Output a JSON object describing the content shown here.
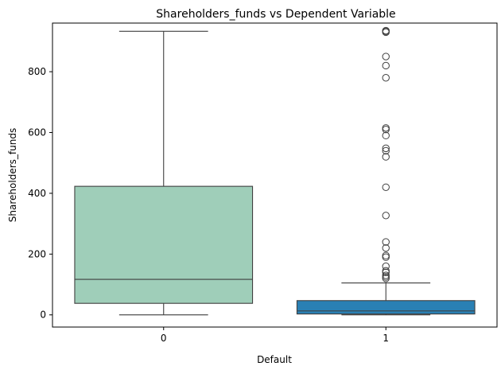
{
  "chart_data": {
    "type": "box",
    "title": "Shareholders_funds vs Dependent Variable",
    "xlabel": "Default",
    "ylabel": "Shareholders_funds",
    "categories": [
      "0",
      "1"
    ],
    "ylim": [
      -40,
      960
    ],
    "yticks": [
      0,
      200,
      400,
      600,
      800
    ],
    "grid": false,
    "boxes": [
      {
        "category": "0",
        "whisker_low": 0,
        "q1": 38,
        "median": 117,
        "q3": 423,
        "whisker_high": 933,
        "color": "#9fceb9",
        "outliers": []
      },
      {
        "category": "1",
        "whisker_low": 0,
        "q1": 3,
        "median": 13,
        "q3": 47,
        "whisker_high": 105,
        "color": "#2a80b4",
        "outliers": [
          120,
          125,
          130,
          140,
          145,
          160,
          190,
          195,
          220,
          240,
          327,
          420,
          520,
          540,
          548,
          590,
          610,
          615,
          780,
          820,
          850,
          930,
          933,
          935
        ]
      }
    ]
  }
}
